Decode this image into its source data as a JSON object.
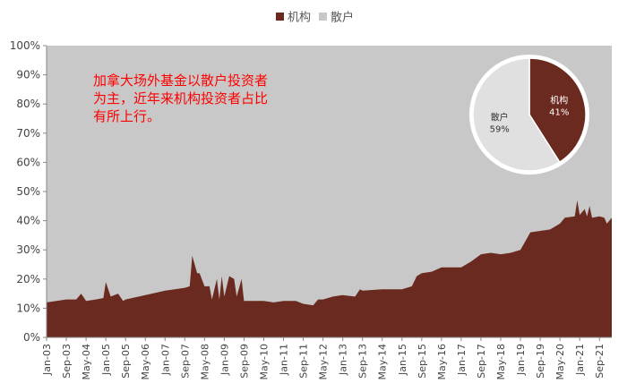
{
  "chart_data": {
    "type": "area",
    "stacked": true,
    "percent": true,
    "ylim": [
      0,
      100
    ],
    "yticks": [
      "0%",
      "10%",
      "20%",
      "30%",
      "40%",
      "50%",
      "60%",
      "70%",
      "80%",
      "90%",
      "100%"
    ],
    "xticks": [
      "Jan-03",
      "Sep-03",
      "May-04",
      "Jan-05",
      "Sep-05",
      "May-06",
      "Jan-07",
      "Sep-07",
      "May-08",
      "Jan-09",
      "Sep-09",
      "May-10",
      "Jan-11",
      "Sep-11",
      "May-12",
      "Jan-13",
      "Sep-13",
      "May-14",
      "Jan-15",
      "Sep-15",
      "May-16",
      "Jan-17",
      "Sep-17",
      "May-18",
      "Jan-19",
      "Sep-19",
      "May-20",
      "Jan-21",
      "Sep-21"
    ],
    "series": [
      {
        "name": "机构",
        "color": "#6b2a1f",
        "points": [
          [
            "Jan-03",
            12
          ],
          [
            "Sep-03",
            13
          ],
          [
            "Jan-04",
            13
          ],
          [
            "Mar-04",
            15
          ],
          [
            "May-04",
            12.5
          ],
          [
            "Sep-04",
            13
          ],
          [
            "Dec-04",
            13.5
          ],
          [
            "Jan-05",
            19
          ],
          [
            "Mar-05",
            14
          ],
          [
            "Jun-05",
            15
          ],
          [
            "Aug-05",
            12.5
          ],
          [
            "Sep-05",
            13
          ],
          [
            "May-06",
            14.5
          ],
          [
            "Jan-07",
            16
          ],
          [
            "Sep-07",
            17
          ],
          [
            "Nov-07",
            17.5
          ],
          [
            "Dec-07",
            28
          ],
          [
            "Feb-08",
            22
          ],
          [
            "Mar-08",
            22
          ],
          [
            "May-08",
            17.5
          ],
          [
            "Jul-08",
            17.5
          ],
          [
            "Aug-08",
            13
          ],
          [
            "Oct-08",
            20
          ],
          [
            "Nov-08",
            13
          ],
          [
            "Dec-08",
            21
          ],
          [
            "Jan-09",
            14
          ],
          [
            "Mar-09",
            21
          ],
          [
            "May-09",
            20
          ],
          [
            "Jun-09",
            14
          ],
          [
            "Aug-09",
            20
          ],
          [
            "Sep-09",
            12.5
          ],
          [
            "May-10",
            12.5
          ],
          [
            "Sep-10",
            12
          ],
          [
            "Jan-11",
            12.5
          ],
          [
            "Jun-11",
            12.5
          ],
          [
            "Sep-11",
            11.5
          ],
          [
            "Jan-12",
            11
          ],
          [
            "Mar-12",
            13
          ],
          [
            "May-12",
            13
          ],
          [
            "Sep-12",
            14
          ],
          [
            "Jan-13",
            14.5
          ],
          [
            "Jun-13",
            14
          ],
          [
            "Aug-13",
            16.5
          ],
          [
            "Sep-13",
            16
          ],
          [
            "May-14",
            16.5
          ],
          [
            "Jan-15",
            16.5
          ],
          [
            "May-15",
            17.5
          ],
          [
            "Jul-15",
            21
          ],
          [
            "Sep-15",
            22
          ],
          [
            "Jan-16",
            22.5
          ],
          [
            "May-16",
            24
          ],
          [
            "Jan-17",
            24
          ],
          [
            "May-17",
            26
          ],
          [
            "Sep-17",
            28.5
          ],
          [
            "Jan-18",
            29
          ],
          [
            "May-18",
            28.5
          ],
          [
            "Sep-18",
            29
          ],
          [
            "Jan-19",
            30
          ],
          [
            "May-19",
            36
          ],
          [
            "Sep-19",
            36.5
          ],
          [
            "Jan-20",
            37
          ],
          [
            "May-20",
            39
          ],
          [
            "Jul-20",
            41
          ],
          [
            "Nov-20",
            41.5
          ],
          [
            "Dec-20",
            47
          ],
          [
            "Jan-21",
            42
          ],
          [
            "Mar-21",
            44
          ],
          [
            "Apr-21",
            41.5
          ],
          [
            "May-21",
            45
          ],
          [
            "Jun-21",
            41
          ],
          [
            "Sep-21",
            41.5
          ],
          [
            "Nov-21",
            41
          ],
          [
            "Dec-21",
            39
          ],
          [
            "Feb-22",
            41
          ]
        ]
      },
      {
        "name": "散户",
        "color": "#c8c8c8"
      }
    ],
    "legend": {
      "position": "top-center"
    },
    "annotation": "加拿大场外基金以散户投资者为主，近年来机构投资者占比有所上行。",
    "annotation_lines": [
      "加拿大场外基金以散户投资者",
      "为主，近年来机构投资者占比",
      "有所上行。"
    ],
    "inset_pie": {
      "slices": [
        {
          "name": "机构",
          "value": 41,
          "label": "41%",
          "color": "#6b2a1f"
        },
        {
          "name": "散户",
          "value": 59,
          "label": "59%",
          "color": "#e0e0e0"
        }
      ]
    }
  }
}
